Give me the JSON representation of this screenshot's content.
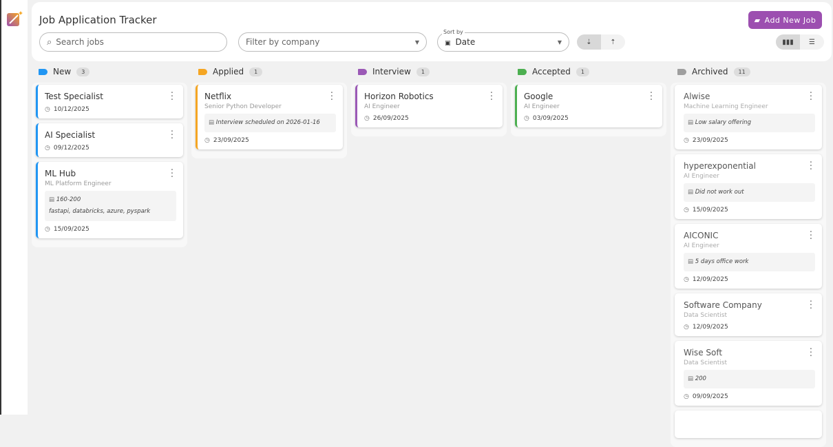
{
  "header": {
    "title": "Job Application Tracker",
    "add_button": "Add New Job",
    "search_placeholder": "Search jobs",
    "filter_placeholder": "Filter by company",
    "sort_label": "Sort by",
    "sort_value": "Date",
    "sort_desc_icon": "⇣",
    "sort_asc_icon": "⇡"
  },
  "colors": {
    "accent": "#9c4fb0",
    "new": "#2196f3",
    "applied": "#f5a623",
    "interview": "#9b59b6",
    "accepted": "#4caf50",
    "archived": "#9e9e9e"
  },
  "columns": [
    {
      "name": "New",
      "count": "3",
      "cards": [
        {
          "company": "Test Specialist",
          "date": "10/12/2025"
        },
        {
          "company": "AI Specialist",
          "date": "09/12/2025"
        },
        {
          "company": "ML Hub",
          "role": "ML Platform Engineer",
          "note": "160-200",
          "note2": "fastapi, databricks, azure, pyspark",
          "date": "15/09/2025"
        }
      ]
    },
    {
      "name": "Applied",
      "count": "1",
      "cards": [
        {
          "company": "Netflix",
          "role": "Senior Python Developer",
          "note": "Interview scheduled on 2026-01-16",
          "date": "23/09/2025"
        }
      ]
    },
    {
      "name": "Interview",
      "count": "1",
      "cards": [
        {
          "company": "Horizon Robotics",
          "role": "AI Engineer",
          "date": "26/09/2025"
        }
      ]
    },
    {
      "name": "Accepted",
      "count": "1",
      "cards": [
        {
          "company": "Google",
          "role": "AI Engineer",
          "date": "03/09/2025"
        }
      ]
    },
    {
      "name": "Archived",
      "count": "11",
      "cards": [
        {
          "company": "Alwise",
          "role": "Machine Learning Engineer",
          "note": "Low salary offering",
          "date": "23/09/2025"
        },
        {
          "company": "hyperexponential",
          "role": "AI Engineer",
          "note": "Did not work out",
          "date": "15/09/2025"
        },
        {
          "company": "AICONIC",
          "role": "AI Engineer",
          "note": "5 days office work",
          "date": "12/09/2025"
        },
        {
          "company": "Software Company",
          "role": "Data Scientist",
          "date": "12/09/2025"
        },
        {
          "company": "Wise Soft",
          "role": "Data Scientist",
          "note": "200",
          "date": "09/09/2025"
        }
      ]
    }
  ]
}
